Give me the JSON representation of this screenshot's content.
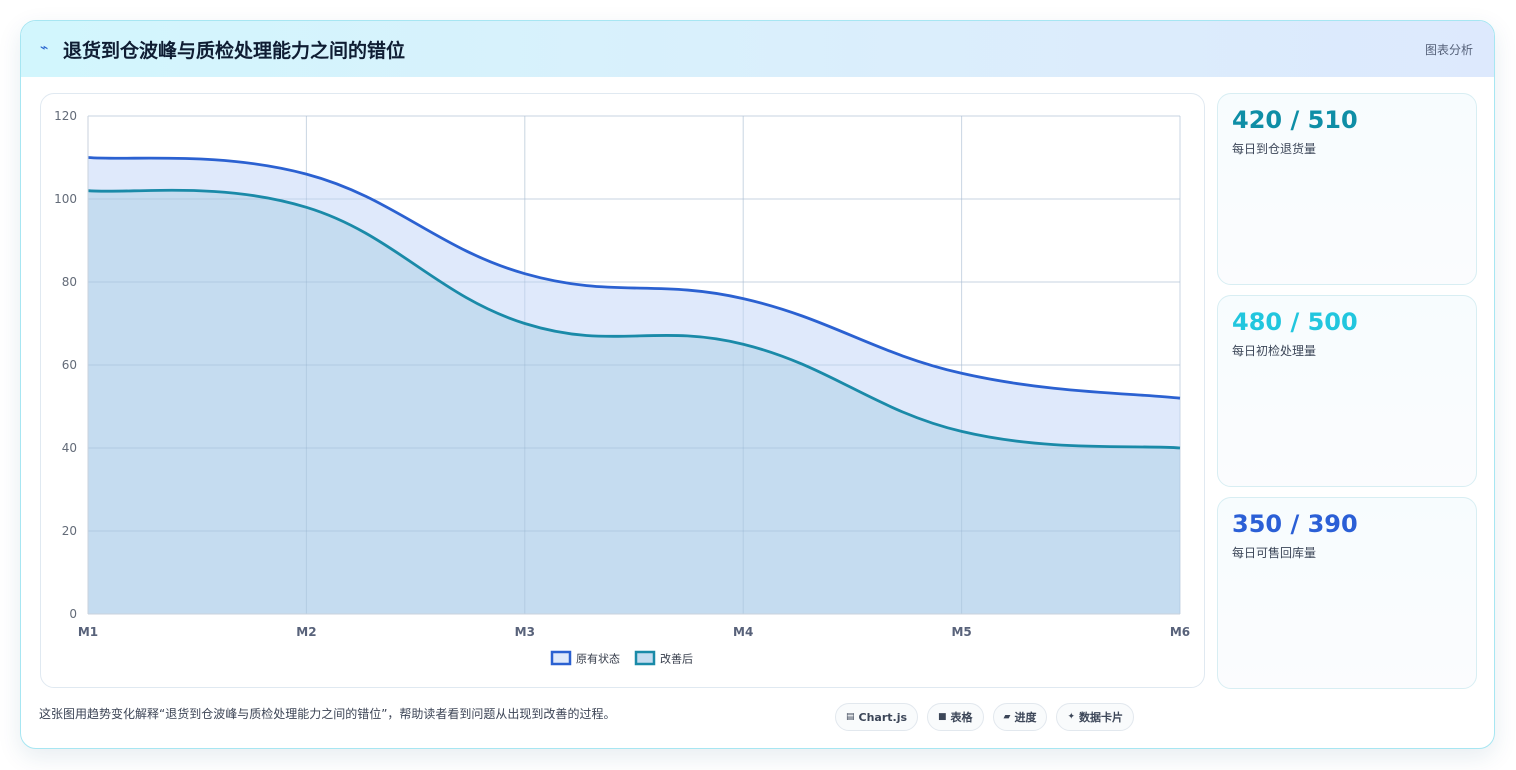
{
  "header": {
    "icon": "sparkle-icon",
    "title": "退货到仓波峰与质检处理能力之间的错位",
    "right_label": "图表分析"
  },
  "chart_data": {
    "type": "area",
    "categories": [
      "M1",
      "M2",
      "M3",
      "M4",
      "M5",
      "M6"
    ],
    "ylim": [
      0,
      120
    ],
    "yticks": [
      0,
      20,
      40,
      60,
      80,
      100,
      120
    ],
    "grid": true,
    "legend_position": "bottom",
    "series": [
      {
        "name": "原有状态",
        "values": [
          110,
          106,
          82,
          76,
          58,
          52
        ],
        "color": "#2b61d1",
        "fill": "#dfe9fb"
      },
      {
        "name": "改善后",
        "values": [
          102,
          98,
          70,
          65,
          44,
          40
        ],
        "color": "#1a8aa8",
        "fill": "#c5dcf0"
      }
    ]
  },
  "kpis": [
    {
      "value": "420 / 510",
      "label": "每日到仓退货量",
      "color": "#0f8ea6"
    },
    {
      "value": "480 / 500",
      "label": "每日初检处理量",
      "color": "#22c6de"
    },
    {
      "value": "350 / 390",
      "label": "每日可售回库量",
      "color": "#2b5fd6"
    }
  ],
  "footer": {
    "note": "这张图用趋势变化解释“退货到仓波峰与质检处理能力之间的错位”，帮助读者看到问题从出现到改善的过程。",
    "chips": [
      {
        "icon": "chart-icon",
        "glyph": "▤",
        "label": "Chart.js"
      },
      {
        "icon": "table-icon",
        "glyph": "■",
        "label": "表格"
      },
      {
        "icon": "progress-icon",
        "glyph": "▰",
        "label": "进度"
      },
      {
        "icon": "card-icon",
        "glyph": "✦",
        "label": "数据卡片"
      }
    ]
  }
}
